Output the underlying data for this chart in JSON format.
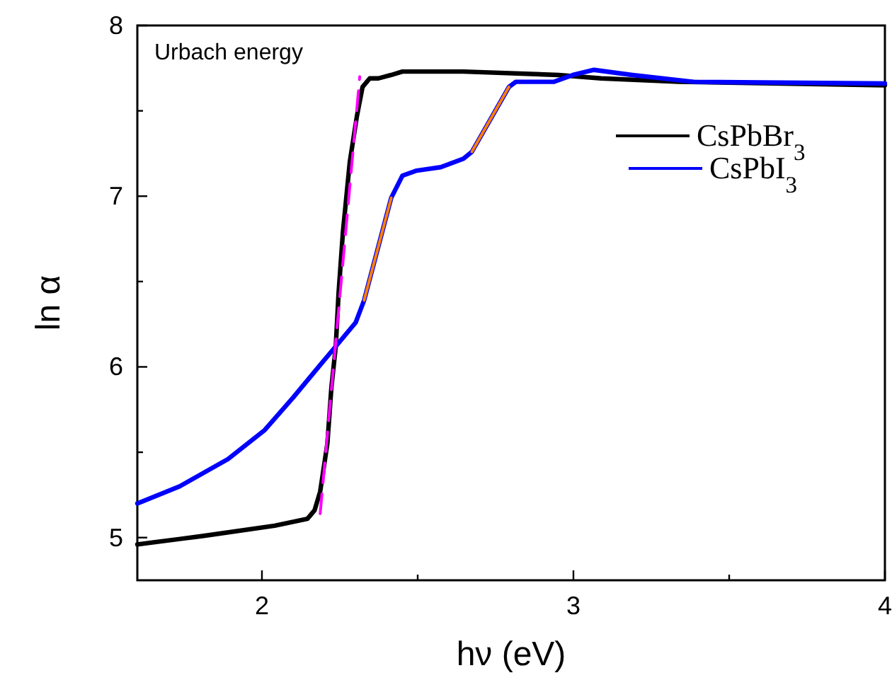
{
  "chart_data": {
    "type": "line",
    "xlabel": "hν (eV)",
    "ylabel": "ln α",
    "annotations": [
      "Urbach energy"
    ],
    "legend": "top right",
    "grid": false,
    "line_style": "solid",
    "marker": "none",
    "xlim": [
      1.6,
      4
    ],
    "ylim": [
      4.75,
      8
    ],
    "xticks": [
      2,
      {
        "value": 2.5,
        "label": null
      },
      3,
      {
        "value": 3.5,
        "label": null
      },
      4
    ],
    "yticks": [
      5,
      {
        "value": 5.5,
        "label": null
      },
      6,
      {
        "value": 6.5,
        "label": null
      },
      7,
      {
        "value": 7.5,
        "label": null
      },
      8
    ],
    "series": [
      {
        "name": "CsPbBr$_{3}$",
        "color": "#000000",
        "x": [
          1.6,
          1.813,
          2.041,
          2.146,
          2.169,
          2.187,
          2.21,
          2.223,
          2.237,
          2.246,
          2.26,
          2.282,
          2.305,
          2.323,
          2.346,
          2.374,
          2.415,
          2.451,
          2.647,
          2.952,
          3.089,
          3.339,
          4
        ],
        "values": [
          4.96,
          5.01,
          5.07,
          5.11,
          5.16,
          5.27,
          5.55,
          5.88,
          6.12,
          6.43,
          6.79,
          7.2,
          7.47,
          7.64,
          7.69,
          7.69,
          7.71,
          7.73,
          7.73,
          7.71,
          7.69,
          7.67,
          7.65
        ]
      },
      {
        "name": "CsPbI$_{3}$",
        "color": "#0000ff",
        "x": [
          1.6,
          1.736,
          1.891,
          2.009,
          2.1,
          2.191,
          2.237,
          2.301,
          2.328,
          2.415,
          2.451,
          2.497,
          2.574,
          2.647,
          2.674,
          2.793,
          2.815,
          2.875,
          2.938,
          2.998,
          3.066,
          3.189,
          3.385,
          4
        ],
        "values": [
          5.2,
          5.3,
          5.46,
          5.63,
          5.82,
          6.02,
          6.12,
          6.26,
          6.39,
          6.99,
          7.12,
          7.15,
          7.17,
          7.22,
          7.26,
          7.64,
          7.67,
          7.67,
          7.67,
          7.71,
          7.74,
          7.71,
          7.67,
          7.66
        ]
      },
      {
        "color": "#ff7f00",
        "x": [
          2.328,
          2.415
        ],
        "values": [
          6.39,
          6.99
        ]
      },
      {
        "color": "#ff7f00",
        "x": [
          2.674,
          2.793
        ],
        "values": [
          7.26,
          7.64
        ]
      },
      {
        "color": "#ff00ff",
        "line_style": "dashed",
        "x": [
          2.187,
          2.314
        ],
        "values": [
          5.14,
          7.7
        ]
      }
    ]
  }
}
